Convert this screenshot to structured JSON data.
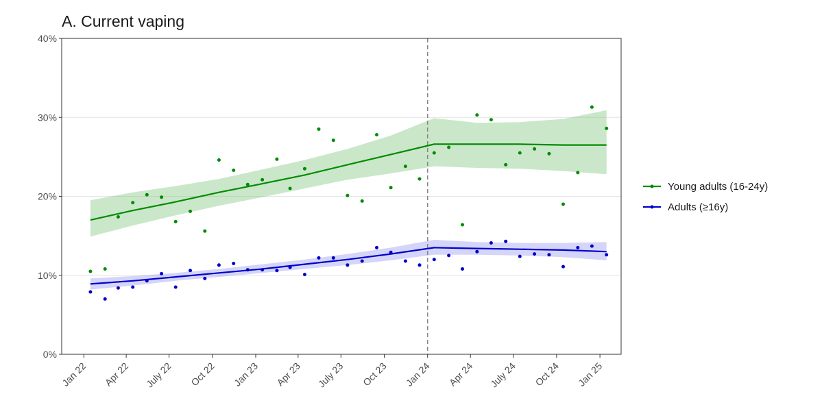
{
  "chart_data": {
    "type": "line",
    "title": "A. Current vaping",
    "xlabel": "",
    "ylabel": "",
    "ylim": [
      0,
      40
    ],
    "y_ticks": [
      0,
      10,
      20,
      30,
      40
    ],
    "y_tick_labels": [
      "0%",
      "10%",
      "20%",
      "30%",
      "40%"
    ],
    "x_range": [
      "2021-11-15",
      "2025-02-15"
    ],
    "x_ticks": [
      "2022-01-01",
      "2022-04-01",
      "2022-07-01",
      "2022-10-01",
      "2023-01-01",
      "2023-04-01",
      "2023-07-01",
      "2023-10-01",
      "2024-01-01",
      "2024-04-01",
      "2024-07-01",
      "2024-10-01",
      "2025-01-01"
    ],
    "x_tick_labels": [
      "Jan 22",
      "Apr 22",
      "July 22",
      "Oct 22",
      "Jan 23",
      "Apr 23",
      "July 23",
      "Oct 23",
      "Jan 24",
      "Apr 24",
      "July 24",
      "Oct 24",
      "Jan 25"
    ],
    "vline": "2024-01-01",
    "grid": "horizontal",
    "legend_position": "right",
    "months": [
      "2022-01",
      "2022-02",
      "2022-03",
      "2022-04",
      "2022-05",
      "2022-06",
      "2022-07",
      "2022-08",
      "2022-09",
      "2022-10",
      "2022-11",
      "2022-12",
      "2023-01",
      "2023-02",
      "2023-03",
      "2023-04",
      "2023-05",
      "2023-06",
      "2023-07",
      "2023-08",
      "2023-09",
      "2023-10",
      "2023-11",
      "2023-12",
      "2024-01",
      "2024-02",
      "2024-03",
      "2024-04",
      "2024-05",
      "2024-06",
      "2024-07",
      "2024-08",
      "2024-09",
      "2024-10",
      "2024-11",
      "2024-12",
      "2025-01"
    ],
    "series": [
      {
        "name": "Young adults (16-24y)",
        "color": "#008B00",
        "band_color": "#66BB66",
        "points": [
          10.5,
          10.8,
          17.4,
          19.2,
          20.2,
          19.9,
          16.8,
          18.1,
          15.6,
          24.6,
          23.3,
          21.5,
          22.1,
          24.7,
          21.0,
          23.5,
          28.5,
          27.1,
          20.1,
          19.4,
          27.8,
          21.1,
          23.8,
          22.2,
          25.5,
          26.2,
          16.4,
          30.3,
          29.7,
          24.0,
          25.5,
          26.0,
          25.4,
          19.0,
          23.0,
          31.3,
          28.6
        ],
        "fit": {
          "months": [
            "2022-01",
            "2022-04",
            "2022-07",
            "2022-10",
            "2023-01",
            "2023-04",
            "2023-07",
            "2023-10",
            "2024-01",
            "2024-04",
            "2024-07",
            "2024-10",
            "2025-01"
          ],
          "mid": [
            17.0,
            18.2,
            19.3,
            20.5,
            21.6,
            22.7,
            24.0,
            25.3,
            26.6,
            26.6,
            26.6,
            26.5,
            26.5
          ],
          "lower": [
            14.9,
            16.3,
            17.6,
            18.8,
            19.9,
            21.0,
            22.1,
            22.9,
            23.8,
            23.6,
            23.5,
            23.2,
            22.8
          ],
          "upper": [
            19.5,
            20.5,
            21.3,
            22.2,
            23.4,
            24.6,
            26.0,
            27.7,
            29.9,
            29.3,
            29.4,
            29.8,
            30.9
          ]
        }
      },
      {
        "name": "Adults (≥16y)",
        "color": "#0000CD",
        "band_color": "#8888EE",
        "points": [
          7.9,
          7.0,
          8.4,
          8.5,
          9.3,
          10.2,
          8.5,
          10.6,
          9.6,
          11.3,
          11.5,
          10.7,
          10.7,
          10.6,
          11.0,
          10.1,
          12.2,
          12.2,
          11.3,
          11.8,
          13.5,
          12.9,
          11.8,
          11.3,
          12.0,
          12.5,
          10.8,
          13.0,
          14.1,
          14.3,
          12.4,
          12.7,
          12.6,
          11.1,
          13.5,
          13.7,
          12.6
        ],
        "fit": {
          "months": [
            "2022-01",
            "2022-04",
            "2022-07",
            "2022-10",
            "2023-01",
            "2023-04",
            "2023-07",
            "2023-10",
            "2024-01",
            "2024-04",
            "2024-07",
            "2024-10",
            "2025-01"
          ],
          "mid": [
            8.9,
            9.3,
            9.8,
            10.3,
            10.8,
            11.4,
            12.0,
            12.7,
            13.5,
            13.4,
            13.3,
            13.2,
            13.0
          ],
          "lower": [
            8.2,
            8.7,
            9.3,
            9.8,
            10.3,
            10.8,
            11.3,
            11.9,
            12.6,
            12.6,
            12.5,
            12.3,
            11.9
          ],
          "upper": [
            9.6,
            9.9,
            10.3,
            10.8,
            11.4,
            12.0,
            12.7,
            13.5,
            14.5,
            14.2,
            14.1,
            14.1,
            14.2
          ]
        }
      }
    ]
  }
}
